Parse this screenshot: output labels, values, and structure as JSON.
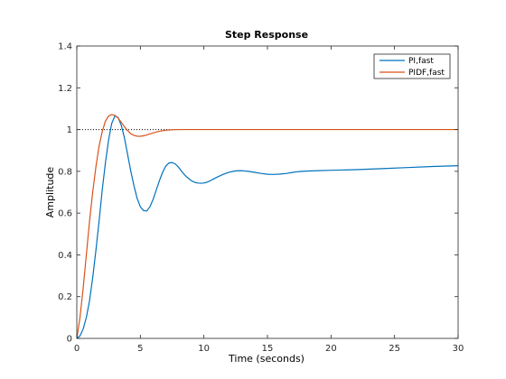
{
  "chart_data": {
    "type": "line",
    "title": "Step Response",
    "xlabel": "Time (seconds)",
    "ylabel": "Amplitude",
    "xlim": [
      0,
      30
    ],
    "ylim": [
      0,
      1.4
    ],
    "xticks": [
      0,
      5,
      10,
      15,
      20,
      25,
      30
    ],
    "yticks": [
      0,
      0.2,
      0.4,
      0.6,
      0.8,
      1,
      1.2,
      1.4
    ],
    "xtick_labels": [
      "0",
      "5",
      "10",
      "15",
      "20",
      "25",
      "30"
    ],
    "ytick_labels": [
      "0",
      "0.2",
      "0.4",
      "0.6",
      "0.8",
      "1",
      "1.2",
      "1.4"
    ],
    "reference_line": {
      "y": 1,
      "x_range": [
        0,
        8
      ],
      "style": "dotted"
    },
    "grid": false,
    "legend_position": "top-right",
    "series": [
      {
        "name": "PI,fast",
        "color": "#0072bd",
        "x": [
          0,
          0.25,
          0.5,
          0.75,
          1,
          1.25,
          1.5,
          1.75,
          2,
          2.25,
          2.5,
          2.75,
          3,
          3.25,
          3.5,
          3.75,
          4,
          4.25,
          4.5,
          4.75,
          5,
          5.25,
          5.5,
          5.75,
          6,
          6.25,
          6.5,
          6.75,
          7,
          7.25,
          7.5,
          7.75,
          8,
          8.25,
          8.5,
          8.75,
          9,
          9.25,
          9.5,
          9.75,
          10,
          10.25,
          10.5,
          10.75,
          11,
          11.5,
          12,
          12.5,
          13,
          13.5,
          14,
          14.5,
          15,
          15.5,
          16,
          16.5,
          17,
          17.5,
          18,
          19,
          20,
          22,
          24,
          26,
          28,
          30
        ],
        "y": [
          0,
          0.012,
          0.045,
          0.1,
          0.18,
          0.29,
          0.42,
          0.56,
          0.71,
          0.84,
          0.95,
          1.03,
          1.065,
          1.058,
          1.02,
          0.96,
          0.88,
          0.8,
          0.73,
          0.67,
          0.63,
          0.612,
          0.61,
          0.63,
          0.665,
          0.71,
          0.755,
          0.795,
          0.825,
          0.84,
          0.842,
          0.835,
          0.82,
          0.8,
          0.782,
          0.768,
          0.756,
          0.748,
          0.744,
          0.743,
          0.744,
          0.748,
          0.755,
          0.763,
          0.771,
          0.785,
          0.796,
          0.802,
          0.803,
          0.8,
          0.795,
          0.79,
          0.786,
          0.785,
          0.787,
          0.79,
          0.795,
          0.799,
          0.801,
          0.803,
          0.805,
          0.808,
          0.813,
          0.818,
          0.823,
          0.827
        ]
      },
      {
        "name": "PIDF,fast",
        "color": "#d95319",
        "x": [
          0,
          0.25,
          0.5,
          0.75,
          1,
          1.25,
          1.5,
          1.75,
          2,
          2.25,
          2.5,
          2.75,
          3,
          3.25,
          3.5,
          3.75,
          4,
          4.25,
          4.5,
          4.75,
          5,
          5.25,
          5.5,
          5.75,
          6,
          6.5,
          7,
          7.5,
          8,
          9,
          10,
          12,
          15,
          20,
          25,
          30
        ],
        "y": [
          0,
          0.1,
          0.24,
          0.4,
          0.56,
          0.7,
          0.82,
          0.92,
          0.99,
          1.04,
          1.065,
          1.072,
          1.068,
          1.055,
          1.035,
          1.013,
          0.995,
          0.98,
          0.972,
          0.968,
          0.968,
          0.97,
          0.974,
          0.979,
          0.984,
          0.992,
          0.997,
          0.999,
          1,
          1,
          1,
          1,
          1,
          1,
          1,
          1
        ]
      }
    ]
  }
}
